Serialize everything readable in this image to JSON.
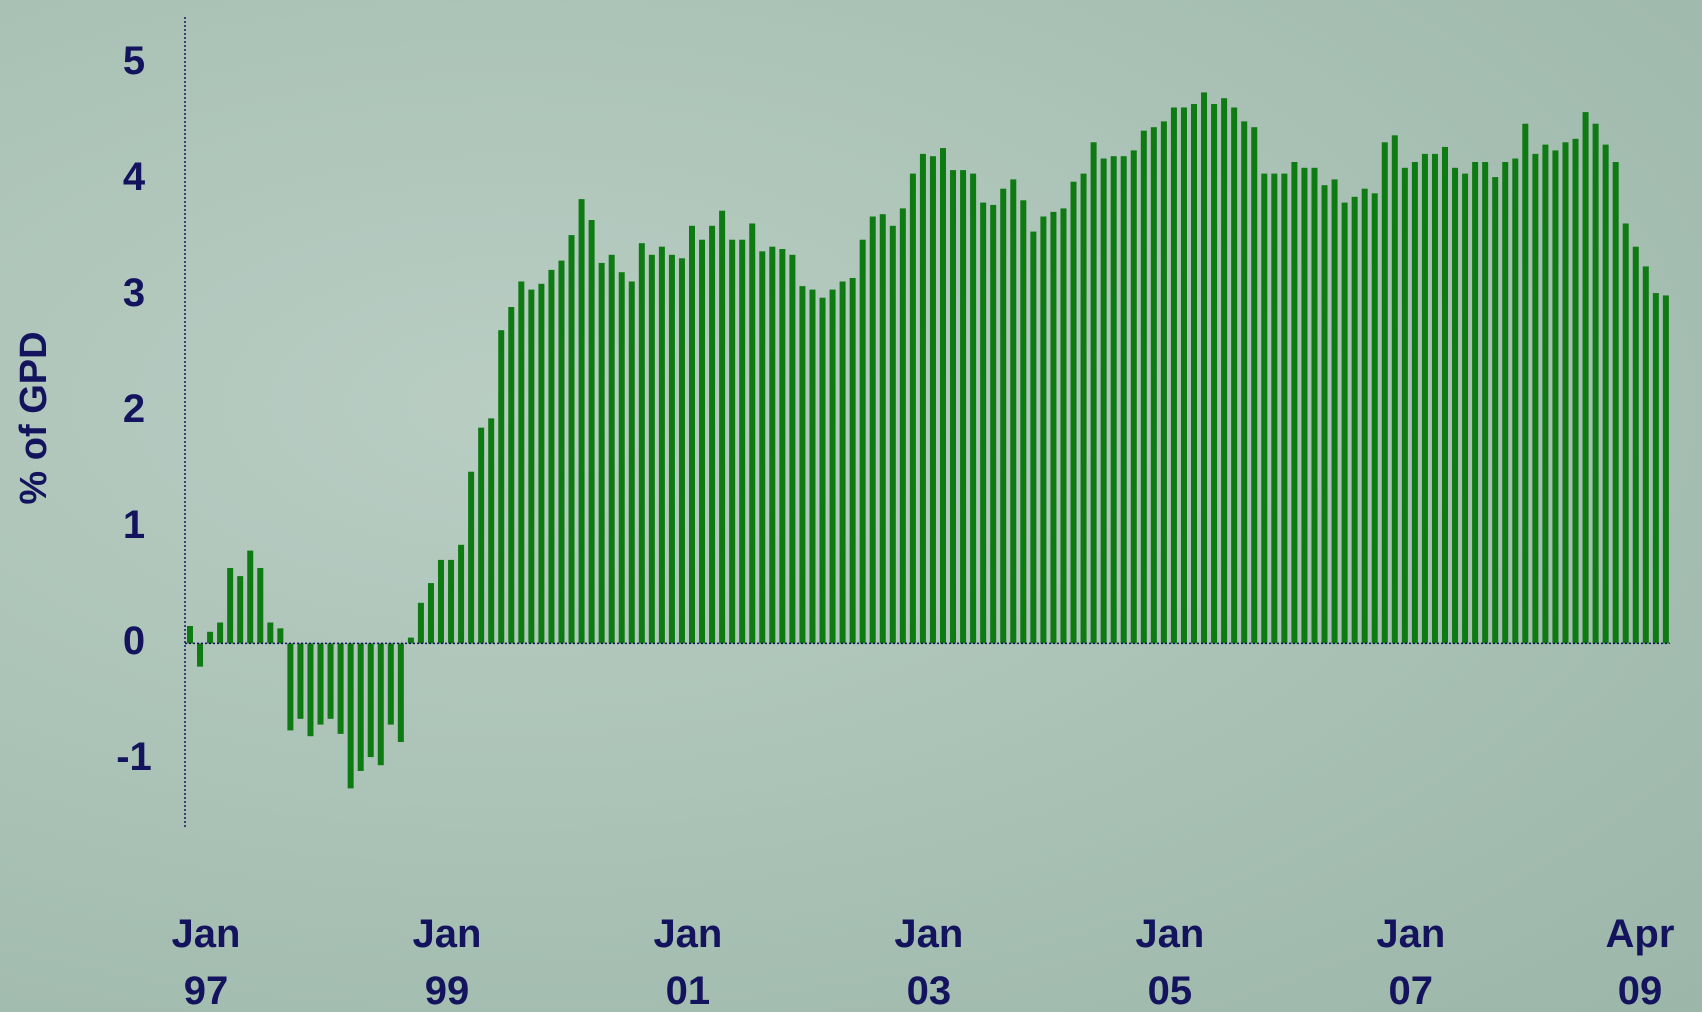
{
  "chart_data": {
    "type": "bar",
    "y_label": "% of GPD",
    "color": "#0e7a12",
    "categories": [
      "Jan\n97",
      null,
      null,
      null,
      null,
      null,
      null,
      null,
      null,
      null,
      null,
      null,
      null,
      null,
      null,
      null,
      null,
      null,
      null,
      null,
      null,
      null,
      null,
      null,
      "Jan\n99",
      null,
      null,
      null,
      null,
      null,
      null,
      null,
      null,
      null,
      null,
      null,
      null,
      null,
      null,
      null,
      null,
      null,
      null,
      null,
      null,
      null,
      null,
      null,
      "Jan\n01",
      null,
      null,
      null,
      null,
      null,
      null,
      null,
      null,
      null,
      null,
      null,
      null,
      null,
      null,
      null,
      null,
      null,
      null,
      null,
      null,
      null,
      null,
      null,
      "Jan\n03",
      null,
      null,
      null,
      null,
      null,
      null,
      null,
      null,
      null,
      null,
      null,
      null,
      null,
      null,
      null,
      null,
      null,
      null,
      null,
      null,
      null,
      null,
      null,
      "Jan\n05",
      null,
      null,
      null,
      null,
      null,
      null,
      null,
      null,
      null,
      null,
      null,
      null,
      null,
      null,
      null,
      null,
      null,
      null,
      null,
      null,
      null,
      null,
      null,
      "Jan\n07",
      null,
      null,
      null,
      null,
      null,
      null,
      null,
      null,
      null,
      null,
      null,
      null,
      null,
      null,
      null,
      null,
      null,
      null,
      null,
      null,
      null,
      null,
      null,
      null,
      null,
      null,
      "Apr\n09"
    ],
    "values": [
      0.15,
      -0.2,
      0.1,
      0.18,
      0.65,
      0.58,
      0.8,
      0.65,
      0.18,
      0.13,
      -0.75,
      -0.65,
      -0.8,
      -0.7,
      -0.65,
      -0.78,
      -1.25,
      -1.1,
      -0.98,
      -1.05,
      -0.7,
      -0.85,
      0.05,
      0.35,
      0.52,
      0.72,
      0.72,
      0.85,
      1.48,
      1.86,
      1.94,
      2.7,
      2.9,
      3.12,
      3.05,
      3.1,
      3.22,
      3.3,
      3.52,
      3.83,
      3.65,
      3.28,
      3.35,
      3.2,
      3.12,
      3.45,
      3.35,
      3.42,
      3.35,
      3.32,
      3.6,
      3.48,
      3.6,
      3.73,
      3.48,
      3.48,
      3.62,
      3.38,
      3.42,
      3.4,
      3.35,
      3.08,
      3.05,
      2.98,
      3.05,
      3.12,
      3.15,
      3.48,
      3.68,
      3.7,
      3.6,
      3.75,
      4.05,
      4.22,
      4.2,
      4.27,
      4.08,
      4.08,
      4.05,
      3.8,
      3.78,
      3.92,
      4.0,
      3.82,
      3.55,
      3.68,
      3.72,
      3.75,
      3.98,
      4.05,
      4.32,
      4.18,
      4.2,
      4.2,
      4.25,
      4.42,
      4.45,
      4.5,
      4.62,
      4.62,
      4.65,
      4.75,
      4.65,
      4.7,
      4.62,
      4.5,
      4.45,
      4.05,
      4.05,
      4.05,
      4.15,
      4.1,
      4.1,
      3.95,
      4.0,
      3.8,
      3.85,
      3.92,
      3.88,
      4.32,
      4.38,
      4.1,
      4.15,
      4.22,
      4.22,
      4.28,
      4.1,
      4.05,
      4.15,
      4.15,
      4.02,
      4.15,
      4.18,
      4.48,
      4.22,
      4.3,
      4.25,
      4.32,
      4.35,
      4.58,
      4.48,
      4.3,
      4.15,
      3.62,
      3.42,
      3.25,
      3.02,
      3.0
    ],
    "ylim": [
      -1.6,
      5.4
    ],
    "yticks": [
      -1,
      0,
      1,
      2,
      3,
      4,
      5
    ]
  }
}
